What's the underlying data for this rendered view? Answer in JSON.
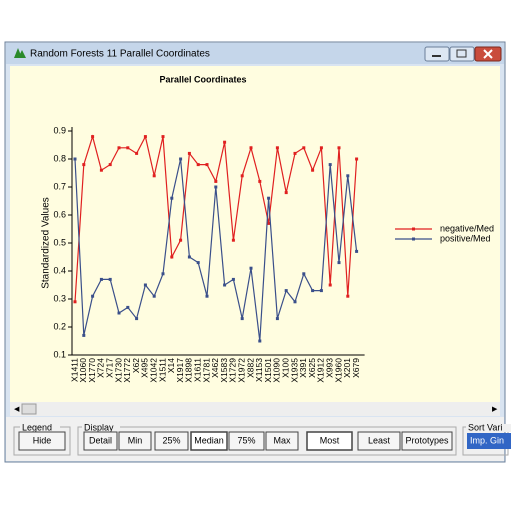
{
  "window": {
    "title": "Random Forests 11  Parallel Coordinates"
  },
  "chart_data": {
    "type": "line",
    "title": "Parallel Coordinates",
    "y_label": "Standardized Values",
    "categories": [
      "X1411",
      "X1060",
      "X1770",
      "X724",
      "X717",
      "X1730",
      "X1772",
      "X62",
      "X495",
      "X1042",
      "X1511",
      "X14",
      "X1917",
      "X1898",
      "X1611",
      "X1781",
      "X462",
      "X1583",
      "X1729",
      "X1972",
      "X882",
      "X1153",
      "X1501",
      "X1090",
      "X100",
      "X1935",
      "X391",
      "X625",
      "X1912",
      "X993",
      "X1960",
      "X201",
      "X679"
    ],
    "series": [
      {
        "name": "negative/Med",
        "color": "#e02020",
        "values": [
          0.29,
          0.78,
          0.88,
          0.76,
          0.78,
          0.84,
          0.84,
          0.82,
          0.88,
          0.74,
          0.88,
          0.45,
          0.51,
          0.82,
          0.78,
          0.78,
          0.72,
          0.86,
          0.51,
          0.74,
          0.84,
          0.72,
          0.57,
          0.84,
          0.68,
          0.82,
          0.84,
          0.76,
          0.84,
          0.35,
          0.84,
          0.31,
          0.8
        ]
      },
      {
        "name": "positive/Med",
        "color": "#3a4f8a",
        "values": [
          0.8,
          0.17,
          0.31,
          0.37,
          0.37,
          0.25,
          0.27,
          0.23,
          0.35,
          0.31,
          0.39,
          0.66,
          0.8,
          0.45,
          0.43,
          0.31,
          0.7,
          0.35,
          0.37,
          0.23,
          0.41,
          0.15,
          0.66,
          0.23,
          0.33,
          0.29,
          0.39,
          0.33,
          0.33,
          0.78,
          0.43,
          0.74,
          0.47
        ]
      }
    ],
    "ylim": [
      0.1,
      0.9
    ],
    "yticks": [
      0.1,
      0.2,
      0.3,
      0.4,
      0.5,
      0.6,
      0.7,
      0.8,
      0.9
    ],
    "legend": "right"
  },
  "controls": {
    "legend_group": "Legend",
    "legend_button": "Hide",
    "display_group": "Display",
    "display_buttons": [
      "Detail",
      "Min",
      "25%",
      "Median",
      "75%",
      "Max",
      "Most",
      "Least",
      "Prototypes"
    ],
    "pressed": [
      3,
      6
    ],
    "sort_group": "Sort Vari",
    "sort_value": "Imp. Gin"
  }
}
